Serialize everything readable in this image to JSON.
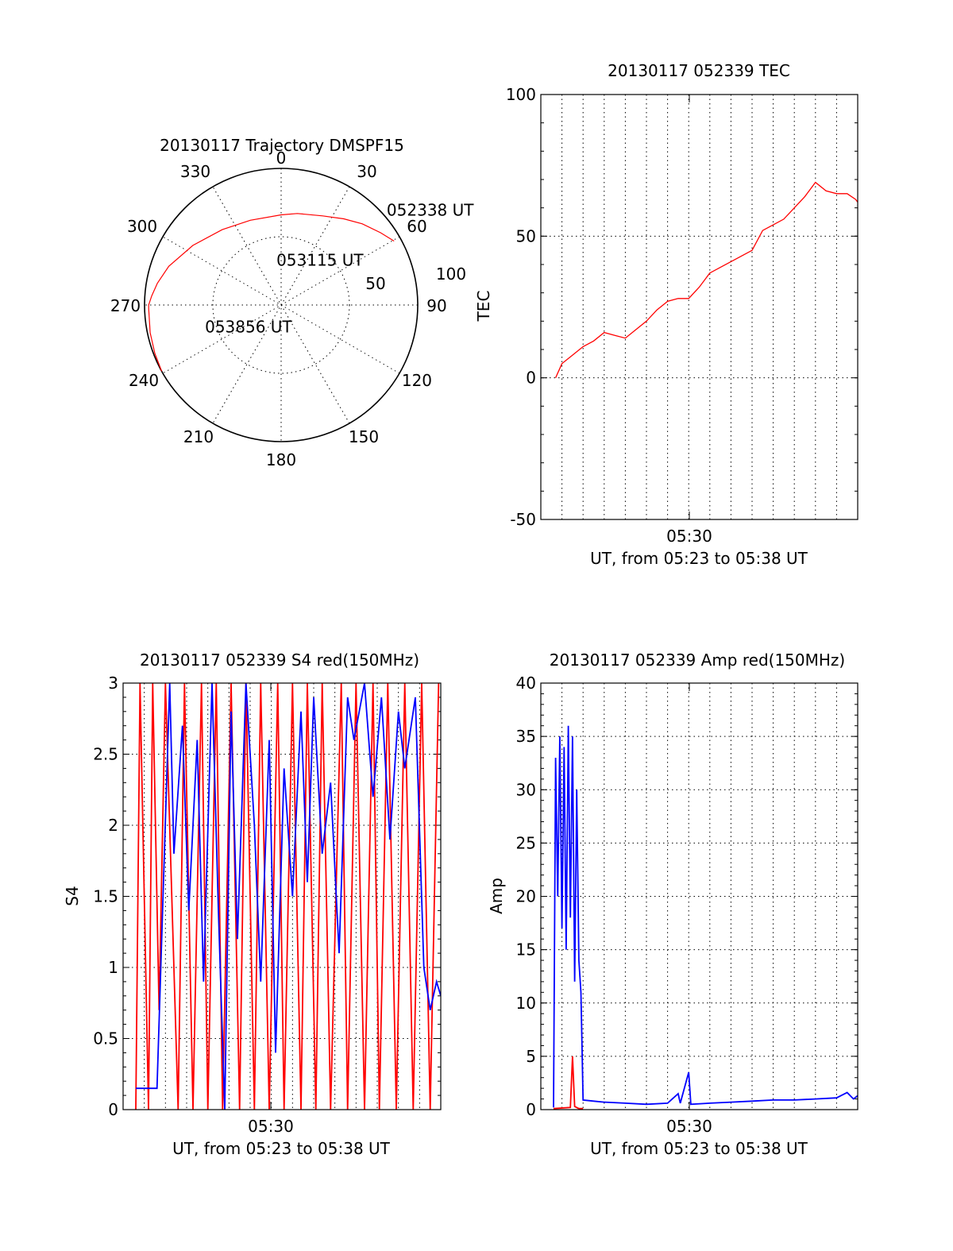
{
  "colors": {
    "red": "#ff0000",
    "blue": "#0000ff",
    "axis": "#000000"
  },
  "chart_data": [
    {
      "id": "trajectory",
      "type": "polar",
      "title": "20130117 Trajectory DMSPF15",
      "azimuth_labels": [
        "0",
        "30",
        "60",
        "90",
        "120",
        "150",
        "180",
        "210",
        "240",
        "270",
        "300",
        "330"
      ],
      "radial_labels": [
        "50",
        "100"
      ],
      "rlim": [
        0,
        100
      ],
      "series": [
        {
          "color": "#ff0000",
          "points_az_zenith": [
            [
              60.5,
              95
            ],
            [
              54,
              90
            ],
            [
              45,
              84
            ],
            [
              36,
              78
            ],
            [
              25,
              72
            ],
            [
              10,
              68
            ],
            [
              0,
              66
            ],
            [
              -20,
              66
            ],
            [
              -38,
              70
            ],
            [
              -56,
              78
            ],
            [
              -71,
              87
            ],
            [
              -80,
              92
            ],
            [
              -86,
              95
            ],
            [
              -90,
              97
            ],
            [
              -92,
              97
            ],
            [
              -102,
              98
            ],
            [
              -111,
              99
            ],
            [
              -119,
              100
            ]
          ]
        }
      ],
      "annotations": [
        {
          "text": "052338 UT",
          "az": 48,
          "r": 104
        },
        {
          "text": "053115 UT",
          "az": -6,
          "r": 33
        },
        {
          "text": "053856 UT",
          "az": -106,
          "r": 58
        }
      ]
    },
    {
      "id": "tec",
      "type": "line",
      "title": "20130117 052339 TEC",
      "ylabel": "TEC",
      "xlabel": "UT, from 05:23 to 05:38 UT",
      "x_tick_label": "05:30",
      "ylim": [
        -50,
        100
      ],
      "y_ticks": [
        "100",
        "50",
        "0",
        "-50"
      ],
      "xlim_min": [
        23.0,
        38.0
      ],
      "grid": true,
      "series": [
        {
          "color": "#ff0000",
          "points": [
            [
              23.7,
              0
            ],
            [
              24.0,
              5
            ],
            [
              24.5,
              8
            ],
            [
              25.0,
              11
            ],
            [
              25.5,
              13
            ],
            [
              26.0,
              16
            ],
            [
              26.5,
              15
            ],
            [
              27.0,
              14
            ],
            [
              27.5,
              17
            ],
            [
              28.0,
              20
            ],
            [
              28.5,
              24
            ],
            [
              29.0,
              27
            ],
            [
              29.5,
              28
            ],
            [
              30.0,
              28
            ],
            [
              30.5,
              32
            ],
            [
              31.0,
              37
            ],
            [
              31.5,
              39
            ],
            [
              32.0,
              41
            ],
            [
              32.5,
              43
            ],
            [
              33.0,
              45
            ],
            [
              33.5,
              52
            ],
            [
              34.0,
              54
            ],
            [
              34.5,
              56
            ],
            [
              35.0,
              60
            ],
            [
              35.5,
              64
            ],
            [
              36.0,
              69
            ],
            [
              36.5,
              66
            ],
            [
              37.0,
              65
            ],
            [
              37.5,
              65
            ],
            [
              37.9,
              63
            ],
            [
              38.0,
              62
            ]
          ]
        }
      ]
    },
    {
      "id": "s4",
      "type": "line",
      "title": "20130117 052339 S4 red(150MHz)",
      "ylabel": "S4",
      "xlabel": "UT, from 05:23 to 05:38 UT",
      "x_tick_label": "05:30",
      "ylim": [
        0,
        3
      ],
      "y_ticks": [
        "3",
        "2.5",
        "2",
        "1.5",
        "1",
        "0.5",
        "0"
      ],
      "xlim_min": [
        23.0,
        38.0
      ],
      "grid": true,
      "series": [
        {
          "color": "#ff0000",
          "points": [
            [
              23.6,
              0
            ],
            [
              23.8,
              3
            ],
            [
              24.2,
              0
            ],
            [
              24.4,
              3
            ],
            [
              24.7,
              0.7
            ],
            [
              25.0,
              3
            ],
            [
              25.6,
              0
            ],
            [
              25.9,
              3
            ],
            [
              26.3,
              0
            ],
            [
              26.7,
              3
            ],
            [
              27.0,
              0
            ],
            [
              27.4,
              3
            ],
            [
              27.7,
              0
            ],
            [
              28.1,
              3
            ],
            [
              28.5,
              0
            ],
            [
              28.8,
              3
            ],
            [
              29.2,
              0
            ],
            [
              29.5,
              3
            ],
            [
              29.9,
              0
            ],
            [
              30.3,
              3
            ],
            [
              30.6,
              0
            ],
            [
              31.0,
              3
            ],
            [
              31.4,
              0
            ],
            [
              31.7,
              3
            ],
            [
              32.1,
              0
            ],
            [
              32.4,
              3
            ],
            [
              32.8,
              0
            ],
            [
              33.3,
              3
            ],
            [
              33.6,
              0
            ],
            [
              34.0,
              3
            ],
            [
              34.4,
              0
            ],
            [
              34.8,
              3
            ],
            [
              35.1,
              0
            ],
            [
              35.5,
              3
            ],
            [
              35.9,
              0
            ],
            [
              36.3,
              3
            ],
            [
              36.7,
              0
            ],
            [
              37.1,
              3
            ],
            [
              37.5,
              0
            ],
            [
              37.9,
              3
            ]
          ]
        },
        {
          "color": "#0000ff",
          "points": [
            [
              23.6,
              0.15
            ],
            [
              24.6,
              0.15
            ],
            [
              25.2,
              3
            ],
            [
              25.4,
              1.8
            ],
            [
              25.8,
              2.7
            ],
            [
              26.1,
              1.4
            ],
            [
              26.5,
              2.6
            ],
            [
              26.8,
              0.9
            ],
            [
              27.2,
              3
            ],
            [
              27.5,
              1.4
            ],
            [
              27.8,
              0
            ],
            [
              28.1,
              2.8
            ],
            [
              28.4,
              1.2
            ],
            [
              28.8,
              3
            ],
            [
              29.2,
              2.0
            ],
            [
              29.5,
              0.9
            ],
            [
              29.9,
              2.6
            ],
            [
              30.2,
              0.4
            ],
            [
              30.6,
              2.4
            ],
            [
              31.0,
              1.5
            ],
            [
              31.4,
              2.8
            ],
            [
              31.7,
              1.6
            ],
            [
              32.0,
              2.9
            ],
            [
              32.4,
              1.8
            ],
            [
              32.8,
              2.3
            ],
            [
              33.2,
              1.1
            ],
            [
              33.6,
              2.9
            ],
            [
              33.9,
              2.6
            ],
            [
              34.4,
              3
            ],
            [
              34.8,
              2.2
            ],
            [
              35.2,
              2.9
            ],
            [
              35.6,
              1.9
            ],
            [
              36.0,
              2.8
            ],
            [
              36.3,
              2.4
            ],
            [
              36.8,
              2.9
            ],
            [
              37.2,
              1.0
            ],
            [
              37.5,
              0.7
            ],
            [
              37.8,
              0.9
            ],
            [
              38.0,
              0.8
            ]
          ]
        }
      ]
    },
    {
      "id": "amp",
      "type": "line",
      "title": "20130117 052339 Amp red(150MHz)",
      "ylabel": "Amp",
      "xlabel": "UT, from 05:23 to 05:38 UT",
      "x_tick_label": "05:30",
      "ylim": [
        0,
        40
      ],
      "y_ticks": [
        "40",
        "35",
        "30",
        "25",
        "20",
        "15",
        "10",
        "5",
        "0"
      ],
      "xlim_min": [
        23.0,
        38.0
      ],
      "grid": true,
      "series": [
        {
          "color": "#0000ff",
          "points": [
            [
              23.6,
              0.2
            ],
            [
              23.7,
              33
            ],
            [
              23.8,
              20
            ],
            [
              23.9,
              35
            ],
            [
              24.0,
              17
            ],
            [
              24.1,
              34
            ],
            [
              24.2,
              15
            ],
            [
              24.3,
              36
            ],
            [
              24.4,
              18
            ],
            [
              24.5,
              35
            ],
            [
              24.6,
              12
            ],
            [
              24.7,
              30
            ],
            [
              24.8,
              14
            ],
            [
              24.9,
              11
            ],
            [
              25.0,
              0.9
            ],
            [
              25.5,
              0.8
            ],
            [
              26.0,
              0.7
            ],
            [
              27.0,
              0.6
            ],
            [
              28.0,
              0.5
            ],
            [
              29.0,
              0.6
            ],
            [
              29.5,
              1.5
            ],
            [
              29.6,
              0.6
            ],
            [
              30.0,
              3.5
            ],
            [
              30.1,
              0.5
            ],
            [
              31.0,
              0.6
            ],
            [
              32.0,
              0.7
            ],
            [
              33.0,
              0.8
            ],
            [
              34.0,
              0.9
            ],
            [
              35.0,
              0.9
            ],
            [
              36.0,
              1.0
            ],
            [
              37.0,
              1.1
            ],
            [
              37.5,
              1.6
            ],
            [
              37.8,
              1.0
            ],
            [
              38.0,
              1.3
            ]
          ]
        },
        {
          "color": "#ff0000",
          "points": [
            [
              23.6,
              0.1
            ],
            [
              24.4,
              0.2
            ],
            [
              24.5,
              5
            ],
            [
              24.6,
              0.3
            ],
            [
              24.8,
              0.1
            ],
            [
              25.0,
              0.1
            ]
          ]
        }
      ]
    }
  ]
}
